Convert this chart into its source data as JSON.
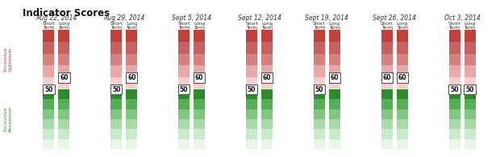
{
  "title": "Indicator Scores",
  "dates": [
    "Aug 22, 2014",
    "Aug 29, 2014",
    "Sept 5, 2014",
    "Sept 12, 2014",
    "Sept 19, 2014",
    "Sept 26, 2014",
    "Oct 3, 2014"
  ],
  "left_label_top": "Excessive\nOptimism",
  "left_label_bottom": "Excessive\nPessimism",
  "n_segments": 11,
  "background_color": "#ffffff",
  "red_shades": [
    "#c0413a",
    "#c96060",
    "#d88080",
    "#e8a8a8",
    "#f4d0d0",
    "#faf0f0"
  ],
  "green_shades": [
    "#e8f5e8",
    "#c8eac8",
    "#a8daa8",
    "#80c880",
    "#55b055",
    "#2d8b2d"
  ],
  "bar_scores": [
    {
      "short": 50,
      "long": 60
    },
    {
      "short": 50,
      "long": 60
    },
    {
      "short": 50,
      "long": 60
    },
    {
      "short": 50,
      "long": 60
    },
    {
      "short": 50,
      "long": 60
    },
    {
      "short": 60,
      "long": 60
    },
    {
      "short": 50,
      "long": 50
    }
  ]
}
